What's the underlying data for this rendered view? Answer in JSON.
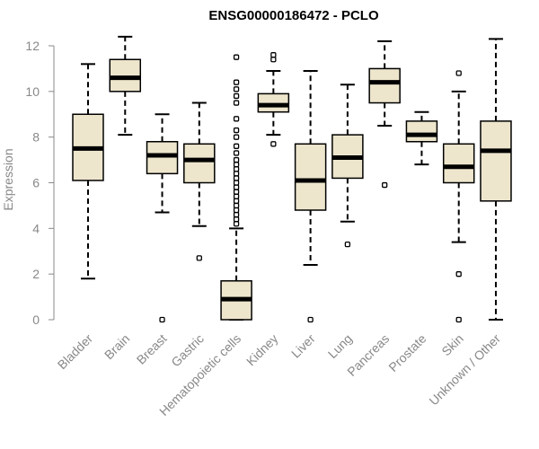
{
  "chart_data": {
    "type": "box",
    "title": "ENSG00000186472 - PCLO",
    "xlabel": "",
    "ylabel": "Expression",
    "ylim": [
      0,
      12
    ],
    "yticks": [
      0,
      2,
      4,
      6,
      8,
      10,
      12
    ],
    "grid": false,
    "colors": {
      "box_fill": "#ede6cd",
      "stroke": "#000000",
      "axis": "#888888"
    },
    "categories": [
      "Bladder",
      "Brain",
      "Breast",
      "Gastric",
      "Hematopoietic cells",
      "Kidney",
      "Liver",
      "Lung",
      "Pancreas",
      "Prostate",
      "Skin",
      "Unknown / Other"
    ],
    "boxes": [
      {
        "name": "Bladder",
        "min": 1.8,
        "q1": 6.1,
        "median": 7.5,
        "q3": 9.0,
        "max": 11.2,
        "outliers": []
      },
      {
        "name": "Brain",
        "min": 8.1,
        "q1": 10.0,
        "median": 10.6,
        "q3": 11.4,
        "max": 12.4,
        "outliers": []
      },
      {
        "name": "Breast",
        "min": 4.7,
        "q1": 6.4,
        "median": 7.2,
        "q3": 7.8,
        "max": 9.0,
        "outliers": [
          0.0
        ]
      },
      {
        "name": "Gastric",
        "min": 4.1,
        "q1": 6.0,
        "median": 7.0,
        "q3": 7.7,
        "max": 9.5,
        "outliers": [
          2.7
        ]
      },
      {
        "name": "Hematopoietic cells",
        "min": 0.0,
        "q1": 0.0,
        "median": 0.9,
        "q3": 1.7,
        "max": 4.0,
        "outliers": [
          4.2,
          4.4,
          4.6,
          4.8,
          5.0,
          5.2,
          5.4,
          5.6,
          5.8,
          6.0,
          6.2,
          6.4,
          6.6,
          6.8,
          7.0,
          7.3,
          7.6,
          8.0,
          8.3,
          8.8,
          9.5,
          9.8,
          10.1,
          10.4,
          11.5
        ]
      },
      {
        "name": "Kidney",
        "min": 8.1,
        "q1": 9.1,
        "median": 9.4,
        "q3": 9.9,
        "max": 10.9,
        "outliers": [
          7.7,
          11.4,
          11.6
        ]
      },
      {
        "name": "Liver",
        "min": 2.4,
        "q1": 4.8,
        "median": 6.1,
        "q3": 7.7,
        "max": 10.9,
        "outliers": [
          0.0
        ]
      },
      {
        "name": "Lung",
        "min": 4.3,
        "q1": 6.2,
        "median": 7.1,
        "q3": 8.1,
        "max": 10.3,
        "outliers": [
          3.3
        ]
      },
      {
        "name": "Pancreas",
        "min": 8.5,
        "q1": 9.5,
        "median": 10.4,
        "q3": 11.0,
        "max": 12.2,
        "outliers": [
          5.9
        ]
      },
      {
        "name": "Prostate",
        "min": 6.8,
        "q1": 7.8,
        "median": 8.1,
        "q3": 8.7,
        "max": 9.1,
        "outliers": []
      },
      {
        "name": "Skin",
        "min": 3.4,
        "q1": 6.0,
        "median": 6.7,
        "q3": 7.7,
        "max": 10.0,
        "outliers": [
          0.0,
          2.0,
          10.8
        ]
      },
      {
        "name": "Unknown / Other",
        "min": 0.0,
        "q1": 5.2,
        "median": 7.4,
        "q3": 8.7,
        "max": 12.3,
        "outliers": []
      }
    ]
  }
}
